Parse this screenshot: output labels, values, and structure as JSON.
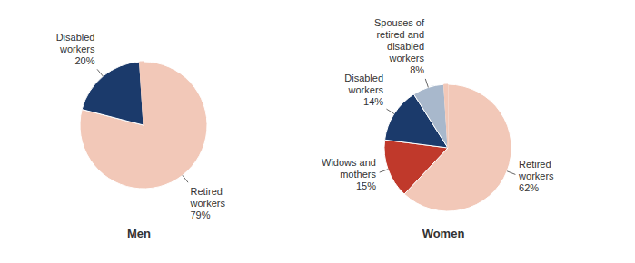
{
  "chart_data": [
    {
      "type": "pie",
      "title": "Men",
      "categories": [
        "Retired\nworkers",
        "Disabled\nworkers",
        null
      ],
      "values": [
        79,
        20,
        1
      ],
      "value_labels": [
        "79%",
        "20%",
        null
      ],
      "colors": [
        "#f2c8b8",
        "#1b3a6b",
        "#f2c8b8"
      ],
      "data_labels": true
    },
    {
      "type": "pie",
      "title": "Women",
      "categories": [
        "Retired\nworkers",
        "Widows and\nmothers",
        "Disabled\nworkers",
        "Spouses of\nretired and\ndisabled\nworkers",
        null
      ],
      "values": [
        62,
        15,
        14,
        8,
        1
      ],
      "value_labels": [
        "62%",
        "15%",
        "14%",
        "8%",
        null
      ],
      "colors": [
        "#f2c8b8",
        "#c0392b",
        "#1b3a6b",
        "#a8b8cc",
        "#f2c8b8"
      ],
      "data_labels": true
    }
  ]
}
